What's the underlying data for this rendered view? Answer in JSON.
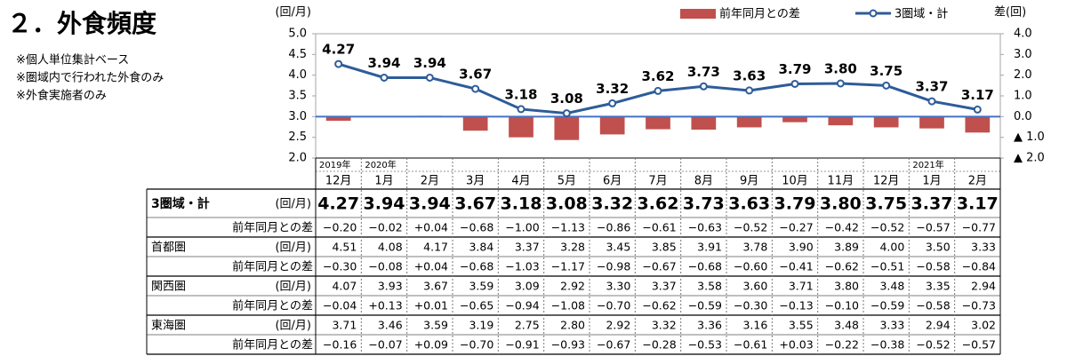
{
  "header": {
    "title": "２．外食頻度",
    "notes": [
      "※個人単位集計ベース",
      "※圏域内で行われた外食のみ",
      "※外食実施者のみ"
    ]
  },
  "chart_data": {
    "type": "combo",
    "y_label": "(回/月)",
    "y2_label": "差(回)",
    "categories": [
      "12月",
      "1月",
      "2月",
      "3月",
      "4月",
      "5月",
      "6月",
      "7月",
      "8月",
      "9月",
      "10月",
      "11月",
      "12月",
      "1月",
      "2月"
    ],
    "years": [
      "2019年",
      "2020年",
      null,
      null,
      null,
      null,
      null,
      null,
      null,
      null,
      null,
      null,
      null,
      "2021年",
      null
    ],
    "series": [
      {
        "name": "前年同月との差",
        "type": "bar",
        "axis": "y2",
        "color": "#c0504d",
        "values": [
          -0.2,
          -0.02,
          0.04,
          -0.68,
          -1.0,
          -1.13,
          -0.86,
          -0.61,
          -0.63,
          -0.52,
          -0.27,
          -0.42,
          -0.52,
          -0.57,
          -0.77
        ]
      },
      {
        "name": "3圏域・計",
        "type": "line",
        "axis": "y",
        "color": "#2e5c99",
        "values": [
          4.27,
          3.94,
          3.94,
          3.67,
          3.18,
          3.08,
          3.32,
          3.62,
          3.73,
          3.63,
          3.79,
          3.8,
          3.75,
          3.37,
          3.17
        ],
        "value_labels": [
          "4.27",
          "3.94",
          "3.94",
          "3.67",
          "3.18",
          "3.08",
          "3.32",
          "3.62",
          "3.73",
          "3.63",
          "3.79",
          "3.80",
          "3.75",
          "3.37",
          "3.17"
        ]
      }
    ],
    "ylim": [
      2,
      5
    ],
    "yticks": [
      {
        "value": 2,
        "label": "2.0"
      },
      2.5,
      {
        "value": 3,
        "label": "3.0"
      },
      3.5,
      {
        "value": 4,
        "label": "4.0"
      },
      4.5,
      {
        "value": 5,
        "label": "5.0"
      }
    ],
    "y2lim": [
      -2,
      4
    ],
    "y2ticks": [
      {
        "value": -2,
        "label": "▲ 2.0"
      },
      {
        "value": -1,
        "label": "▲ 1.0"
      },
      {
        "value": 0,
        "label": "0.0"
      },
      {
        "value": 1,
        "label": "1.0"
      },
      {
        "value": 2,
        "label": "2.0"
      },
      {
        "value": 3,
        "label": "3.0"
      },
      {
        "value": 4,
        "label": "4.0"
      }
    ],
    "grid": false,
    "legend": "top"
  },
  "table": {
    "rows": [
      {
        "label": "3圏域・計",
        "unit": "(回/月)",
        "cells": [
          "4.27",
          "3.94",
          "3.94",
          "3.67",
          "3.18",
          "3.08",
          "3.32",
          "3.62",
          "3.73",
          "3.63",
          "3.79",
          "3.80",
          "3.75",
          "3.37",
          "3.17"
        ]
      },
      {
        "label": "前年同月との差",
        "cells": [
          "−0.20",
          "−0.02",
          "+0.04",
          "−0.68",
          "−1.00",
          "−1.13",
          "−0.86",
          "−0.61",
          "−0.63",
          "−0.52",
          "−0.27",
          "−0.42",
          "−0.52",
          "−0.57",
          "−0.77"
        ]
      },
      {
        "label": "首都圏",
        "unit": "(回/月)",
        "cells": [
          "4.51",
          "4.08",
          "4.17",
          "3.84",
          "3.37",
          "3.28",
          "3.45",
          "3.85",
          "3.91",
          "3.78",
          "3.90",
          "3.89",
          "4.00",
          "3.50",
          "3.33"
        ]
      },
      {
        "label": "前年同月との差",
        "cells": [
          "−0.30",
          "−0.08",
          "+0.04",
          "−0.68",
          "−1.03",
          "−1.17",
          "−0.98",
          "−0.67",
          "−0.68",
          "−0.60",
          "−0.41",
          "−0.62",
          "−0.51",
          "−0.58",
          "−0.84"
        ]
      },
      {
        "label": "関西圏",
        "unit": "(回/月)",
        "cells": [
          "4.07",
          "3.93",
          "3.67",
          "3.59",
          "3.09",
          "2.92",
          "3.30",
          "3.37",
          "3.58",
          "3.60",
          "3.71",
          "3.80",
          "3.48",
          "3.35",
          "2.94"
        ]
      },
      {
        "label": "前年同月との差",
        "cells": [
          "−0.04",
          "+0.13",
          "+0.01",
          "−0.65",
          "−0.94",
          "−1.08",
          "−0.70",
          "−0.62",
          "−0.59",
          "−0.30",
          "−0.13",
          "−0.10",
          "−0.59",
          "−0.58",
          "−0.73"
        ]
      },
      {
        "label": "東海圏",
        "unit": "(回/月)",
        "cells": [
          "3.71",
          "3.46",
          "3.59",
          "3.19",
          "2.75",
          "2.80",
          "2.92",
          "3.32",
          "3.36",
          "3.16",
          "3.55",
          "3.48",
          "3.33",
          "2.94",
          "3.02"
        ]
      },
      {
        "label": "前年同月との差",
        "cells": [
          "−0.16",
          "−0.07",
          "+0.09",
          "−0.70",
          "−0.91",
          "−0.93",
          "−0.67",
          "−0.28",
          "−0.53",
          "−0.61",
          "+0.03",
          "−0.22",
          "−0.38",
          "−0.52",
          "−0.57"
        ]
      }
    ]
  }
}
